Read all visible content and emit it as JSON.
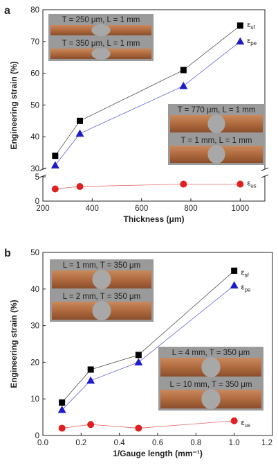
{
  "chart_data": [
    {
      "type": "line",
      "panel_label": "a",
      "xlabel": "Thickness (μm)",
      "ylabel": "Engineering strain (%)",
      "xlim": [
        200,
        1100
      ],
      "ylim": [
        0,
        80
      ],
      "y_axis_break": true,
      "y_lower_segment": [
        0,
        5
      ],
      "y_upper_segment": [
        30,
        80
      ],
      "x_ticks": [
        "200",
        "400",
        "600",
        "800",
        "1000"
      ],
      "y_ticks": [
        "0",
        "5",
        "30",
        "40",
        "50",
        "60",
        "70",
        "80"
      ],
      "x": [
        250,
        350,
        770,
        1000
      ],
      "series": [
        {
          "name": "ε_sf",
          "color": "#000000",
          "marker": "square",
          "values": [
            34,
            45,
            61,
            75
          ]
        },
        {
          "name": "ε_pe",
          "color": "#1c1cc8",
          "marker": "triangle",
          "values": [
            31,
            41,
            56,
            70
          ]
        },
        {
          "name": "ε_us",
          "color": "#e02020",
          "marker": "circle",
          "values": [
            2.5,
            3,
            3.5,
            3.5
          ]
        }
      ],
      "insets": [
        {
          "lines": [
            "T = 250 μm, L = 1 mm",
            "T = 350 μm, L = 1 mm"
          ]
        },
        {
          "lines": [
            "T = 770 μm, L = 1 mm",
            "T = 1 mm, L = 1 mm"
          ]
        }
      ]
    },
    {
      "type": "line",
      "panel_label": "b",
      "xlabel": "1/Gauge length (mm⁻¹)",
      "ylabel": "Engineering strain (%)",
      "xlim": [
        0.0,
        1.2
      ],
      "ylim": [
        0,
        50
      ],
      "x_ticks": [
        "0.0",
        "0.2",
        "0.4",
        "0.6",
        "0.8",
        "1.0",
        "1.2"
      ],
      "y_ticks": [
        "0",
        "10",
        "20",
        "30",
        "40",
        "50"
      ],
      "x": [
        0.1,
        0.25,
        0.5,
        1.0
      ],
      "series": [
        {
          "name": "ε_sf",
          "color": "#000000",
          "marker": "square",
          "values": [
            9,
            18,
            22,
            45
          ]
        },
        {
          "name": "ε_pe",
          "color": "#1c1cc8",
          "marker": "triangle",
          "values": [
            7,
            15,
            20,
            41
          ]
        },
        {
          "name": "ε_us",
          "color": "#e02020",
          "marker": "circle",
          "values": [
            2,
            3,
            2,
            4
          ]
        }
      ],
      "insets": [
        {
          "lines": [
            "L = 1 mm, T = 350 μm",
            "L = 2 mm, T = 350 μm"
          ]
        },
        {
          "lines": [
            "L = 4 mm, T = 350 μm",
            "L = 10 mm, T = 350 μm"
          ]
        }
      ]
    }
  ]
}
